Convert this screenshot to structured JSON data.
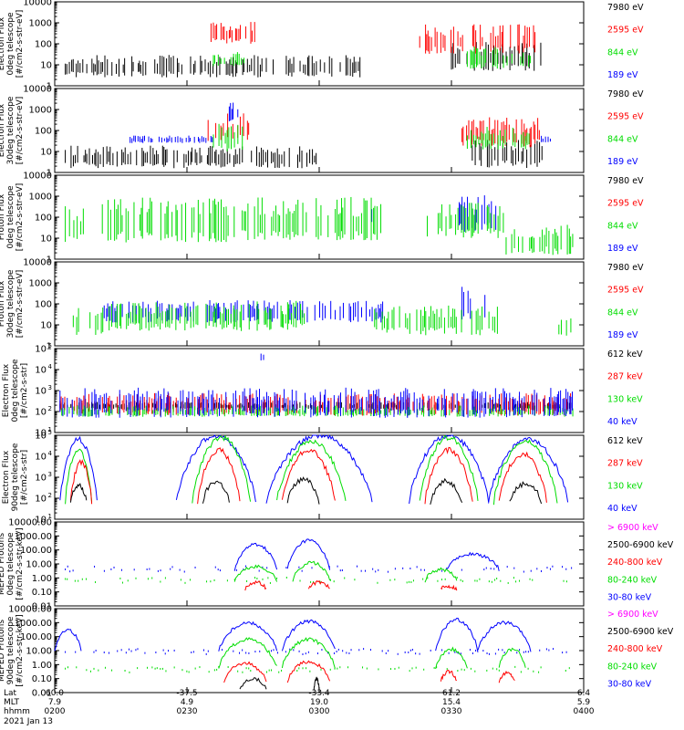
{
  "chart_data": [
    {
      "type": "bar",
      "ylabel": [
        "Electron Flux",
        "0deg telescope",
        "[#/cm2-s-str-eV]"
      ],
      "ytype": "log",
      "yticks": [
        "1",
        "10",
        "100",
        "1000",
        "10000"
      ],
      "ylim": [
        1,
        10000
      ],
      "legend": [
        {
          "label": "7980 eV",
          "color": "#000000"
        },
        {
          "label": "2595 eV",
          "color": "#ff0000"
        },
        {
          "label": "844 eV",
          "color": "#00dd00"
        },
        {
          "label": "189 eV",
          "color": "#0000ff"
        }
      ],
      "series": [
        {
          "name": "7980 eV",
          "color": "#000000",
          "segments": [
            [
              0.02,
              0.58,
              1.0,
              0.3
            ],
            [
              0.75,
              0.92,
              1.5,
              0.4
            ]
          ]
        },
        {
          "name": "2595 eV",
          "color": "#ff0000",
          "segments": [
            [
              0.29,
              0.38,
              2.6,
              0.3
            ],
            [
              0.69,
              0.91,
              2.3,
              0.4
            ]
          ]
        },
        {
          "name": "844 eV",
          "color": "#00dd00",
          "segments": [
            [
              0.3,
              0.36,
              1.3,
              0.2
            ],
            [
              0.78,
              0.9,
              1.4,
              0.3
            ]
          ]
        }
      ]
    },
    {
      "type": "bar",
      "ylabel": [
        "Electron Flux",
        "30deg telescope",
        "[#/cm2-s-str-eV]"
      ],
      "ytype": "log",
      "yticks": [
        "1",
        "10",
        "100",
        "1000",
        "10000"
      ],
      "ylim": [
        1,
        10000
      ],
      "legend": [
        {
          "label": "7980 eV",
          "color": "#000000"
        },
        {
          "label": "2595 eV",
          "color": "#ff0000"
        },
        {
          "label": "844 eV",
          "color": "#00dd00"
        },
        {
          "label": "189 eV",
          "color": "#0000ff"
        }
      ],
      "series": [
        {
          "name": "7980 eV",
          "color": "#000000",
          "segments": [
            [
              0.02,
              0.5,
              0.8,
              0.3
            ],
            [
              0.78,
              0.93,
              1.0,
              0.4
            ]
          ]
        },
        {
          "name": "2595 eV",
          "color": "#ff0000",
          "segments": [
            [
              0.29,
              0.37,
              2.2,
              0.4
            ],
            [
              0.77,
              0.92,
              2.0,
              0.4
            ]
          ]
        },
        {
          "name": "844 eV",
          "color": "#00dd00",
          "segments": [
            [
              0.3,
              0.36,
              1.8,
              0.4
            ],
            [
              0.78,
              0.91,
              1.7,
              0.3
            ]
          ]
        },
        {
          "name": "189 eV",
          "color": "#0000ff",
          "segments": [
            [
              0.14,
              0.3,
              1.6,
              0.1
            ],
            [
              0.33,
              0.35,
              3.0,
              0.3
            ],
            [
              0.92,
              0.94,
              1.6,
              0.1
            ]
          ]
        }
      ]
    },
    {
      "type": "bar",
      "ylabel": [
        "Proton Flux",
        "0deg telescope",
        "[#/cm2-s-str-eV]"
      ],
      "ytype": "log",
      "yticks": [
        "1",
        "10",
        "100",
        "1000",
        "10000"
      ],
      "ylim": [
        1,
        10000
      ],
      "legend": [
        {
          "label": "7980 eV",
          "color": "#000000"
        },
        {
          "label": "2595 eV",
          "color": "#ff0000"
        },
        {
          "label": "844 eV",
          "color": "#00dd00"
        },
        {
          "label": "189 eV",
          "color": "#0000ff"
        }
      ],
      "series": [
        {
          "name": "189 eV",
          "color": "#0000ff",
          "segments": [
            [
              0.59,
              0.61,
              2.1,
              0.3
            ],
            [
              0.75,
              0.84,
              2.3,
              0.5
            ]
          ]
        },
        {
          "name": "844 eV",
          "color": "#00dd00",
          "segments": [
            [
              0.02,
              0.06,
              1.8,
              0.5
            ],
            [
              0.09,
              0.62,
              2.0,
              0.6
            ],
            [
              0.7,
              0.85,
              2.0,
              0.5
            ],
            [
              0.85,
              0.98,
              1.0,
              0.4
            ]
          ]
        }
      ]
    },
    {
      "type": "bar",
      "ylabel": [
        "Proton Flux",
        "30deg telescope",
        "[#/cm2-s-str-eV]"
      ],
      "ytype": "log",
      "yticks": [
        "1",
        "10",
        "100",
        "1000",
        "10000"
      ],
      "ylim": [
        1,
        10000
      ],
      "legend": [
        {
          "label": "7980 eV",
          "color": "#000000"
        },
        {
          "label": "2595 eV",
          "color": "#ff0000"
        },
        {
          "label": "844 eV",
          "color": "#00dd00"
        },
        {
          "label": "189 eV",
          "color": "#0000ff"
        }
      ],
      "series": [
        {
          "name": "189 eV",
          "color": "#0000ff",
          "segments": [
            [
              0.09,
              0.62,
              1.7,
              0.3
            ],
            [
              0.77,
              0.82,
              2.2,
              0.5
            ]
          ]
        },
        {
          "name": "844 eV",
          "color": "#00dd00",
          "segments": [
            [
              0.02,
              0.1,
              1.3,
              0.4
            ],
            [
              0.1,
              0.48,
              1.5,
              0.4
            ],
            [
              0.6,
              0.84,
              1.3,
              0.4
            ],
            [
              0.95,
              0.98,
              1.0,
              0.3
            ]
          ]
        }
      ]
    },
    {
      "type": "bar",
      "ylabel": [
        "MEPED",
        "Electron Flux",
        "0deg telescope",
        "[#/cm2-s-str]"
      ],
      "ytype": "log",
      "yticks": [
        "10^1",
        "10^2",
        "10^3",
        "10^4",
        "10^5"
      ],
      "ylim": [
        10,
        100000
      ],
      "legend": [
        {
          "label": "612 keV",
          "color": "#000000"
        },
        {
          "label": "287 keV",
          "color": "#ff0000"
        },
        {
          "label": "130 keV",
          "color": "#00dd00"
        },
        {
          "label": "40 keV",
          "color": "#0000ff"
        }
      ],
      "series": [
        {
          "name": "612 keV",
          "color": "#000000",
          "segments": [
            [
              0.01,
              0.98,
              2.3,
              0.1
            ]
          ]
        },
        {
          "name": "287 keV",
          "color": "#ff0000",
          "segments": [
            [
              0.01,
              0.98,
              2.4,
              0.3
            ]
          ]
        },
        {
          "name": "130 keV",
          "color": "#00dd00",
          "segments": [
            [
              0.01,
              0.98,
              2.05,
              0.15
            ]
          ]
        },
        {
          "name": "40 keV",
          "color": "#0000ff",
          "segments": [
            [
              0.01,
              0.98,
              2.5,
              0.4
            ],
            [
              0.39,
              0.4,
              4.6,
              0.1
            ]
          ]
        }
      ]
    },
    {
      "type": "line",
      "ylabel": [
        "MEPED",
        "Electron Flux",
        "90deg telescope",
        "[#/cm2-s-str]"
      ],
      "ytype": "log",
      "yticks": [
        "10^1",
        "10^2",
        "10^3",
        "10^4",
        "10^5"
      ],
      "ylim": [
        10,
        100000
      ],
      "legend": [
        {
          "label": "612 keV",
          "color": "#000000"
        },
        {
          "label": "287 keV",
          "color": "#ff0000"
        },
        {
          "label": "130 keV",
          "color": "#00dd00"
        },
        {
          "label": "40 keV",
          "color": "#0000ff"
        }
      ],
      "series": [
        {
          "name": "40 keV",
          "color": "#0000ff",
          "humps": [
            [
              0.01,
              0.08,
              4.8
            ],
            [
              0.23,
              0.38,
              5.0
            ],
            [
              0.4,
              0.6,
              5.0
            ],
            [
              0.67,
              0.82,
              5.0
            ],
            [
              0.82,
              0.97,
              4.8
            ]
          ]
        },
        {
          "name": "130 keV",
          "color": "#00dd00",
          "humps": [
            [
              0.02,
              0.07,
              4.3
            ],
            [
              0.26,
              0.37,
              4.9
            ],
            [
              0.42,
              0.55,
              4.7
            ],
            [
              0.69,
              0.8,
              4.9
            ],
            [
              0.83,
              0.95,
              4.7
            ]
          ]
        },
        {
          "name": "287 keV",
          "color": "#ff0000",
          "humps": [
            [
              0.03,
              0.07,
              3.7
            ],
            [
              0.27,
              0.35,
              4.3
            ],
            [
              0.43,
              0.53,
              4.3
            ],
            [
              0.7,
              0.79,
              4.3
            ],
            [
              0.84,
              0.93,
              4.1
            ]
          ]
        },
        {
          "name": "612 keV",
          "color": "#000000",
          "humps": [
            [
              0.03,
              0.06,
              2.6
            ],
            [
              0.28,
              0.33,
              2.8
            ],
            [
              0.44,
              0.5,
              2.9
            ],
            [
              0.71,
              0.77,
              2.8
            ],
            [
              0.86,
              0.92,
              2.7
            ]
          ]
        }
      ]
    },
    {
      "type": "line",
      "ylabel": [
        "MEPED Protons",
        "0deg telescope",
        "[#/cm2-s-str-keV]"
      ],
      "ytype": "log",
      "yticks": [
        "0.01",
        "0.10",
        "1.00",
        "10.00",
        "100.00",
        "1000.00",
        "10000.00"
      ],
      "ylim": [
        0.01,
        10000
      ],
      "legend": [
        {
          "label": "> 6900 keV",
          "color": "#ff00ff"
        },
        {
          "label": "2500-6900 keV",
          "color": "#000000"
        },
        {
          "label": "240-800 keV",
          "color": "#ff0000"
        },
        {
          "label": "80-240 keV",
          "color": "#00dd00"
        },
        {
          "label": "30-80 keV",
          "color": "#0000ff"
        }
      ],
      "series": [
        {
          "name": "30-80 keV",
          "color": "#0000ff",
          "base": 0.6,
          "humps": [
            [
              0.34,
              0.42,
              2.4
            ],
            [
              0.44,
              0.52,
              2.7
            ],
            [
              0.74,
              0.84,
              1.7
            ]
          ],
          "baseline": [
            [
              0.02,
              0.98,
              0.7
            ]
          ]
        },
        {
          "name": "80-240 keV",
          "color": "#00dd00",
          "base": -0.2,
          "humps": [
            [
              0.34,
              0.42,
              0.8
            ],
            [
              0.45,
              0.52,
              1.1
            ],
            [
              0.7,
              0.76,
              0.6
            ]
          ],
          "baseline": [
            [
              0.02,
              0.98,
              -0.1
            ]
          ]
        },
        {
          "name": "240-800 keV",
          "color": "#ff0000",
          "base": -0.8,
          "humps": [
            [
              0.36,
              0.4,
              -0.3
            ],
            [
              0.48,
              0.52,
              -0.3
            ],
            [
              0.73,
              0.76,
              -0.6
            ]
          ],
          "baseline": []
        }
      ]
    },
    {
      "type": "line",
      "ylabel": [
        "MEPED Protons",
        "90deg telescope",
        "[#/cm2-s-str-keV]"
      ],
      "ytype": "log",
      "yticks": [
        "0.01",
        "0.10",
        "1.00",
        "10.00",
        "100.00",
        "1000.00",
        "10000.00"
      ],
      "ylim": [
        0.01,
        10000
      ],
      "legend": [
        {
          "label": "> 6900 keV",
          "color": "#ff00ff"
        },
        {
          "label": "2500-6900 keV",
          "color": "#000000"
        },
        {
          "label": "240-800 keV",
          "color": "#ff0000"
        },
        {
          "label": "80-240 keV",
          "color": "#00dd00"
        },
        {
          "label": "30-80 keV",
          "color": "#0000ff"
        }
      ],
      "series": [
        {
          "name": "30-80 keV",
          "color": "#0000ff",
          "base": 1.0,
          "humps": [
            [
              0.0,
              0.05,
              2.5
            ],
            [
              0.31,
              0.42,
              3.0
            ],
            [
              0.43,
              0.53,
              3.1
            ],
            [
              0.72,
              0.8,
              3.2
            ],
            [
              0.8,
              0.9,
              3.0
            ]
          ],
          "baseline": [
            [
              0.02,
              0.98,
              1.0
            ]
          ]
        },
        {
          "name": "80-240 keV",
          "color": "#00dd00",
          "base": -0.2,
          "humps": [
            [
              0.31,
              0.42,
              1.8
            ],
            [
              0.43,
              0.53,
              1.8
            ],
            [
              0.72,
              0.78,
              1.1
            ],
            [
              0.84,
              0.89,
              1.1
            ]
          ],
          "baseline": [
            [
              0.02,
              0.98,
              -0.3
            ]
          ]
        },
        {
          "name": "240-800 keV",
          "color": "#ff0000",
          "base": -1.2,
          "humps": [
            [
              0.32,
              0.4,
              0.1
            ],
            [
              0.44,
              0.52,
              0.2
            ],
            [
              0.73,
              0.76,
              -0.5
            ],
            [
              0.84,
              0.87,
              -0.6
            ]
          ],
          "baseline": []
        },
        {
          "name": "2500-6900 keV",
          "color": "#000000",
          "base": -1.8,
          "humps": [
            [
              0.35,
              0.4,
              -1.0
            ],
            [
              0.49,
              0.5,
              -1.0
            ]
          ],
          "baseline": []
        }
      ]
    }
  ],
  "xaxis": {
    "row_labels": [
      "Lat",
      "MLT",
      "hhmm"
    ],
    "ticks": [
      {
        "lat": "60.0",
        "mlt": "7.9",
        "time": "0200"
      },
      {
        "lat": "-37.5",
        "mlt": "4.9",
        "time": "0230"
      },
      {
        "lat": "-33.4",
        "mlt": "19.0",
        "time": "0300"
      },
      {
        "lat": "61.2",
        "mlt": "15.4",
        "time": "0330"
      },
      {
        "lat": "6.4",
        "mlt": "5.9",
        "time": "0400"
      }
    ],
    "date": "2021 Jan 13"
  }
}
